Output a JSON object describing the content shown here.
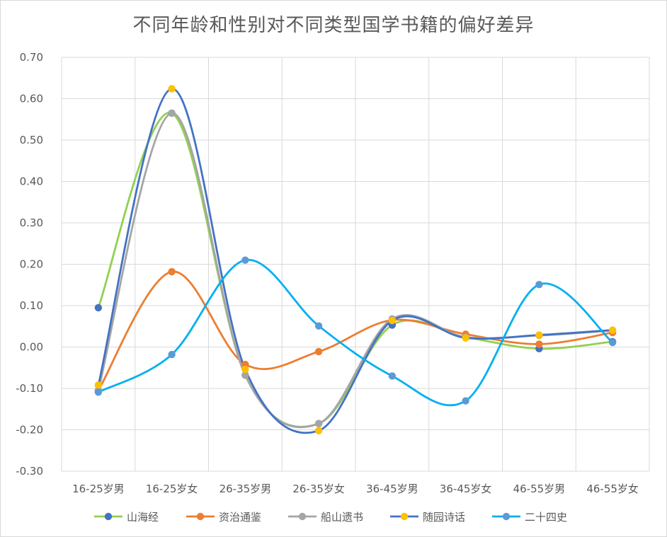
{
  "chart_data": {
    "type": "line",
    "title": "不同年龄和性别对不同类型国学书籍的偏好差异",
    "categories": [
      "16-25岁男",
      "16-25岁女",
      "26-35岁男",
      "26-35岁女",
      "36-45岁男",
      "36-45岁女",
      "46-55岁男",
      "46-55岁女"
    ],
    "ylim": [
      -0.3,
      0.7
    ],
    "yticks": [
      "0.70",
      "0.60",
      "0.50",
      "0.40",
      "0.30",
      "0.20",
      "0.10",
      "0.00",
      "-0.10",
      "-0.20",
      "-0.30"
    ],
    "ytick_values": [
      0.7,
      0.6,
      0.5,
      0.4,
      0.3,
      0.2,
      0.1,
      0.0,
      -0.1,
      -0.2,
      -0.3
    ],
    "grid": true,
    "smooth": true,
    "legend_position": "bottom",
    "series": [
      {
        "name": "山海经",
        "line_color": "#92d050",
        "marker_color": "#4472c4",
        "values": [
          0.095,
          0.565,
          -0.068,
          -0.185,
          0.053,
          0.024,
          -0.004,
          0.013
        ]
      },
      {
        "name": "资治通鉴",
        "line_color": "#ed7d31",
        "marker_color": "#ed7d31",
        "values": [
          -0.105,
          0.182,
          -0.042,
          -0.011,
          0.065,
          0.031,
          0.007,
          0.035
        ]
      },
      {
        "name": "船山遗书",
        "line_color": "#a5a5a5",
        "marker_color": "#a5a5a5",
        "values": [
          -0.105,
          0.565,
          -0.068,
          -0.185,
          0.068,
          0.024,
          0.028,
          0.04
        ]
      },
      {
        "name": "随园诗话",
        "line_color": "#4472c4",
        "marker_color": "#ffc000",
        "values": [
          -0.092,
          0.624,
          -0.054,
          -0.202,
          0.064,
          0.022,
          0.029,
          0.041
        ]
      },
      {
        "name": "二十四史",
        "line_color": "#00b0f0",
        "marker_color": "#5b9bd5",
        "values": [
          -0.109,
          -0.018,
          0.21,
          0.051,
          -0.07,
          -0.13,
          0.151,
          0.011
        ]
      }
    ]
  }
}
